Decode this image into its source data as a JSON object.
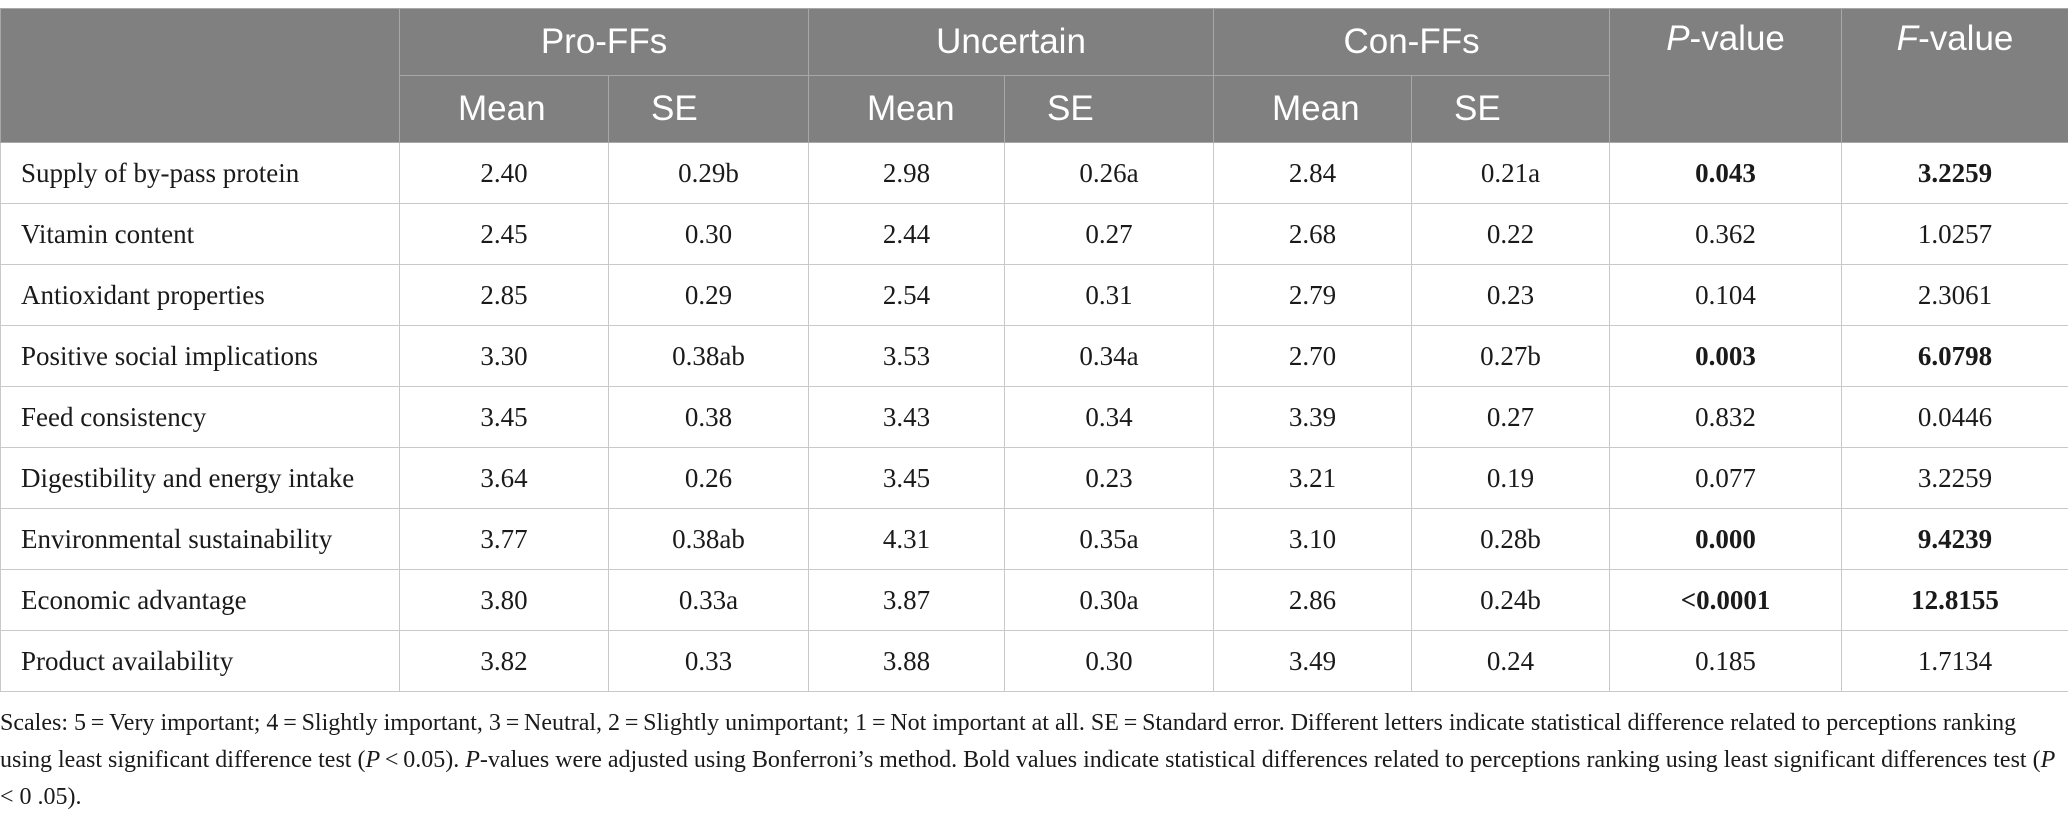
{
  "table": {
    "groups": [
      "Pro-FFs",
      "Uncertain",
      "Con-FFs"
    ],
    "p_header_prefix": "P",
    "p_header_suffix": "-value",
    "f_header_prefix": "F",
    "f_header_suffix": "-value",
    "mean_label": "Mean",
    "se_label": "SE",
    "rows": [
      {
        "attr": "Supply of by-pass protein",
        "pro_mean": "2.40",
        "pro_se": "0.29b",
        "unc_mean": "2.98",
        "unc_se": "0.26a",
        "con_mean": "2.84",
        "con_se": "0.21a",
        "p": "0.043",
        "f": "3.2259",
        "bold": true
      },
      {
        "attr": "Vitamin content",
        "pro_mean": "2.45",
        "pro_se": "0.30",
        "unc_mean": "2.44",
        "unc_se": "0.27",
        "con_mean": "2.68",
        "con_se": "0.22",
        "p": "0.362",
        "f": "1.0257",
        "bold": false
      },
      {
        "attr": "Antioxidant properties",
        "pro_mean": "2.85",
        "pro_se": "0.29",
        "unc_mean": "2.54",
        "unc_se": "0.31",
        "con_mean": "2.79",
        "con_se": "0.23",
        "p": "0.104",
        "f": "2.3061",
        "bold": false
      },
      {
        "attr": "Positive social implications",
        "pro_mean": "3.30",
        "pro_se": "0.38ab",
        "unc_mean": "3.53",
        "unc_se": "0.34a",
        "con_mean": "2.70",
        "con_se": "0.27b",
        "p": "0.003",
        "f": "6.0798",
        "bold": true
      },
      {
        "attr": "Feed consistency",
        "pro_mean": "3.45",
        "pro_se": "0.38",
        "unc_mean": "3.43",
        "unc_se": "0.34",
        "con_mean": "3.39",
        "con_se": "0.27",
        "p": "0.832",
        "f": "0.0446",
        "bold": false
      },
      {
        "attr": "Digestibility and energy intake",
        "pro_mean": "3.64",
        "pro_se": "0.26",
        "unc_mean": "3.45",
        "unc_se": "0.23",
        "con_mean": "3.21",
        "con_se": "0.19",
        "p": "0.077",
        "f": "3.2259",
        "bold": false
      },
      {
        "attr": "Environmental sustainability",
        "pro_mean": "3.77",
        "pro_se": "0.38ab",
        "unc_mean": "4.31",
        "unc_se": "0.35a",
        "con_mean": "3.10",
        "con_se": "0.28b",
        "p": "0.000",
        "f": "9.4239",
        "bold": true
      },
      {
        "attr": "Economic advantage",
        "pro_mean": "3.80",
        "pro_se": "0.33a",
        "unc_mean": "3.87",
        "unc_se": "0.30a",
        "con_mean": "2.86",
        "con_se": "0.24b",
        "p": "<0.0001",
        "f": "12.8155",
        "bold": true
      },
      {
        "attr": "Product availability",
        "pro_mean": "3.82",
        "pro_se": "0.33",
        "unc_mean": "3.88",
        "unc_se": "0.30",
        "con_mean": "3.49",
        "con_se": "0.24",
        "p": "0.185",
        "f": "1.7134",
        "bold": false
      }
    ]
  },
  "footnote": {
    "part1": "Scales: 5 = Very important; 4 = Slightly important, 3 = Neutral, 2 = Slightly unimportant; 1 = Not important at all. SE = Standard error. Different letters indicate statistical difference related to perceptions ranking using least significant difference test (",
    "p1": "P",
    "part2": " < 0.05). ",
    "p2": "P",
    "part3": "-values were adjusted using Bonferroni’s method. Bold values indicate statistical differences related to perceptions ranking using least significant differences test (",
    "p3": "P",
    "part4": " < 0 .05)."
  }
}
